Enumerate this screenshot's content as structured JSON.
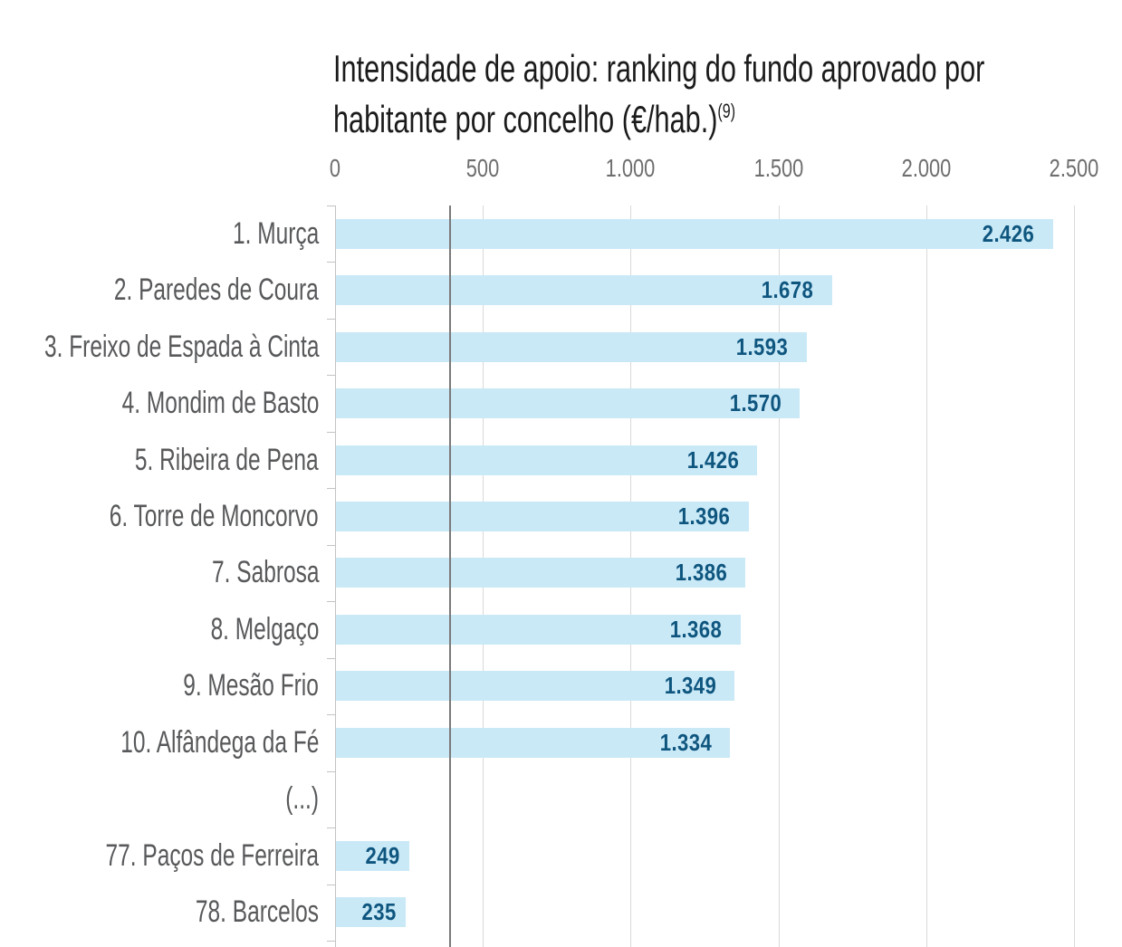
{
  "chart_data": {
    "type": "bar",
    "orientation": "horizontal",
    "title": "Intensidade de apoio: ranking do fundo aprovado por habitante por concelho (€/hab.)",
    "title_lines": [
      "Intensidade de apoio: ranking do fundo aprovado por",
      "habitante por concelho (€/hab.)"
    ],
    "title_footnote_marker": "(9)",
    "categories": [
      "1. Murça",
      "2. Paredes de Coura",
      "3. Freixo de Espada à Cinta",
      "4. Mondim de Basto",
      "5. Ribeira de Pena",
      "6. Torre de Moncorvo",
      "7. Sabrosa",
      "8. Melgaço",
      "9. Mesão Frio",
      "10. Alfândega da Fé",
      "(...)",
      "77. Paços de Ferreira",
      "78. Barcelos"
    ],
    "values": [
      2426,
      1678,
      1593,
      1570,
      1426,
      1396,
      1386,
      1368,
      1349,
      1334,
      null,
      249,
      235
    ],
    "value_labels": [
      "2.426",
      "1.678",
      "1.593",
      "1.570",
      "1.426",
      "1.396",
      "1.386",
      "1.368",
      "1.349",
      "1.334",
      "",
      "249",
      "235"
    ],
    "x_axis": {
      "position": "top",
      "range": [
        0,
        2500
      ],
      "ticks": [
        {
          "value": 0,
          "label": "0"
        },
        {
          "value": 500,
          "label": "500"
        },
        {
          "value": 1000,
          "label": "1.000"
        },
        {
          "value": 1500,
          "label": "1.500"
        },
        {
          "value": 2000,
          "label": "2.000"
        },
        {
          "value": 2500,
          "label": "2.500"
        }
      ]
    },
    "reference_line": {
      "value": 390
    },
    "grid": "vertical",
    "colors": {
      "bar": "#c9e9f7",
      "value_text": "#0f567f",
      "category_text": "#58595b",
      "tick_text": "#6e6e6e",
      "gridline": "#d9d9d9",
      "axis": "#c3c3c3",
      "reference_line": "#7a7a7a",
      "title_text": "#1b1b1b",
      "background": "#ffffff"
    }
  }
}
